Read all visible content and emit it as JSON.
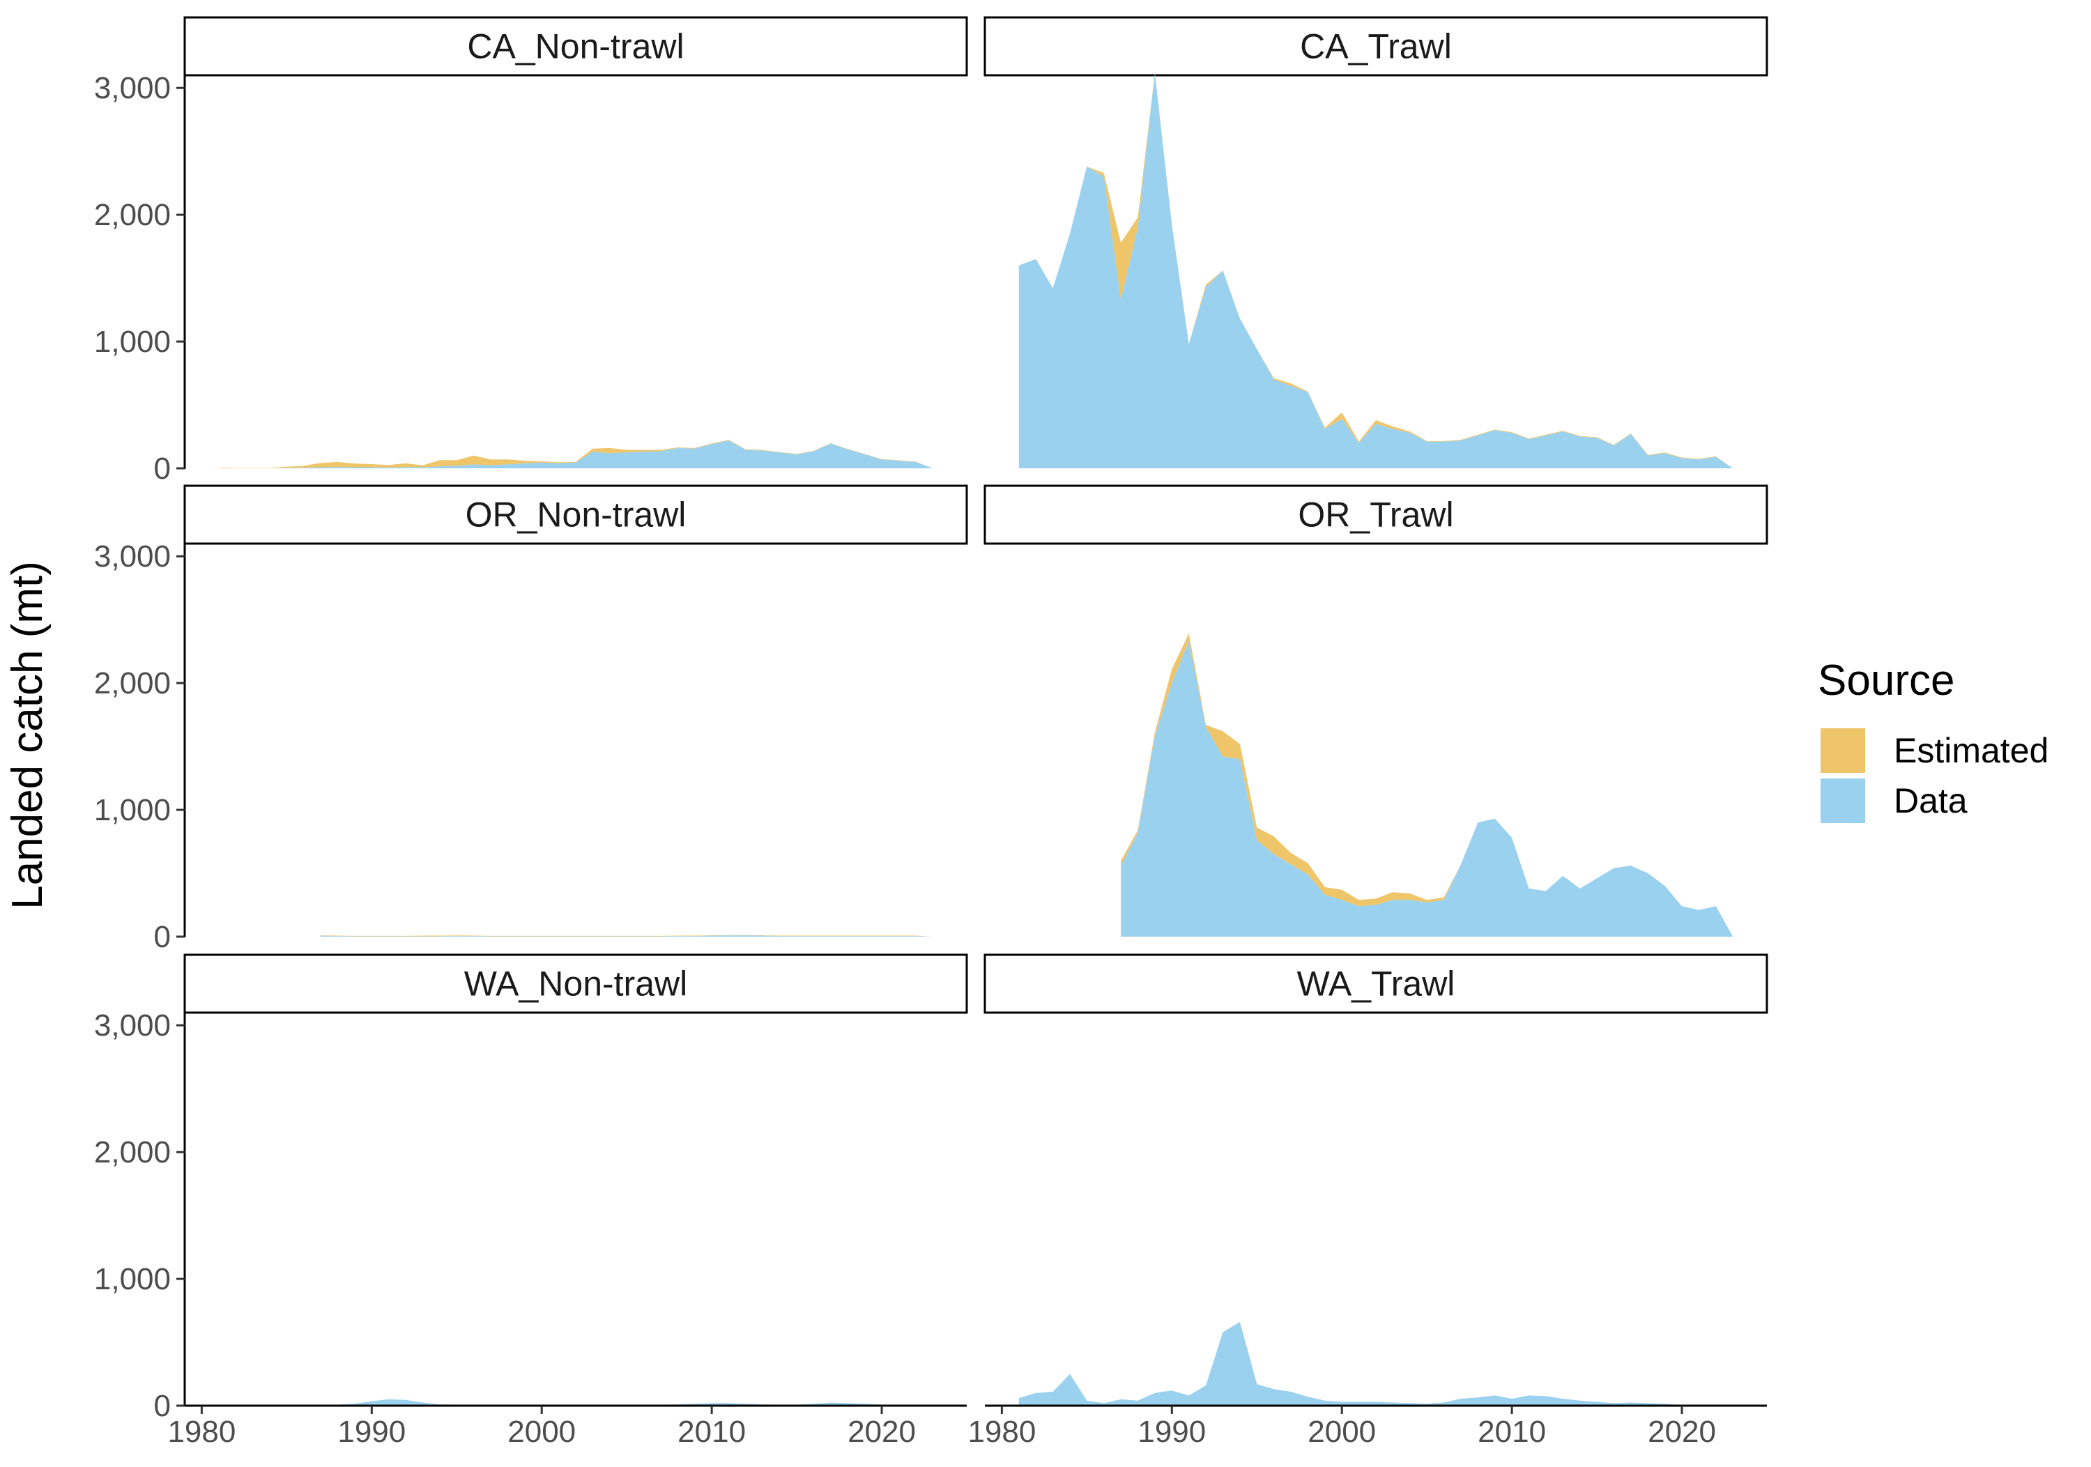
{
  "chart_data": {
    "type": "area",
    "ylabel": "Landed catch (mt)",
    "xlabel": "",
    "xlim": [
      1979,
      2025
    ],
    "ylim": [
      0,
      3100
    ],
    "x_ticks": [
      1980,
      1990,
      2000,
      2010,
      2020
    ],
    "x_tick_labels": [
      "1980",
      "1990",
      "2000",
      "2010",
      "2020"
    ],
    "y_ticks": [
      0,
      1000,
      2000,
      3000
    ],
    "y_tick_labels": [
      "0",
      "1,000",
      "2,000",
      "3,000"
    ],
    "grid": false,
    "stacked": true,
    "legend": {
      "title": "Source",
      "position": "right",
      "entries": [
        {
          "label": "Estimated",
          "color": "#efc56a"
        },
        {
          "label": "Data",
          "color": "#9ad1ef"
        }
      ]
    },
    "colors": {
      "Estimated": "#efc56a",
      "Data": "#9ad1ef"
    },
    "panels": [
      {
        "name": "CA_Non-trawl",
        "x": [
          1981,
          1982,
          1983,
          1984,
          1985,
          1986,
          1987,
          1988,
          1989,
          1990,
          1991,
          1992,
          1993,
          1994,
          1995,
          1996,
          1997,
          1998,
          1999,
          2000,
          2001,
          2002,
          2003,
          2004,
          2005,
          2006,
          2007,
          2008,
          2009,
          2010,
          2011,
          2012,
          2013,
          2014,
          2015,
          2016,
          2017,
          2018,
          2019,
          2020,
          2021,
          2022,
          2023
        ],
        "series": [
          {
            "name": "Data",
            "values": [
              0,
              0,
              0,
              0,
              3,
              5,
              8,
              10,
              8,
              8,
              6,
              10,
              8,
              15,
              20,
              30,
              25,
              30,
              40,
              45,
              40,
              45,
              130,
              120,
              125,
              130,
              135,
              160,
              155,
              190,
              220,
              145,
              140,
              125,
              110,
              135,
              195,
              150,
              110,
              70,
              60,
              50,
              0
            ]
          },
          {
            "name": "Estimated",
            "values": [
              5,
              3,
              3,
              3,
              10,
              15,
              35,
              40,
              30,
              25,
              20,
              30,
              15,
              50,
              45,
              70,
              45,
              40,
              20,
              10,
              8,
              5,
              25,
              40,
              20,
              15,
              10,
              5,
              5,
              5,
              5,
              5,
              5,
              3,
              3,
              3,
              3,
              3,
              3,
              3,
              3,
              3,
              0
            ]
          }
        ]
      },
      {
        "name": "CA_Trawl",
        "x": [
          1981,
          1982,
          1983,
          1984,
          1985,
          1986,
          1987,
          1988,
          1989,
          1990,
          1991,
          1992,
          1993,
          1994,
          1995,
          1996,
          1997,
          1998,
          1999,
          2000,
          2001,
          2002,
          2003,
          2004,
          2005,
          2006,
          2007,
          2008,
          2009,
          2010,
          2011,
          2012,
          2013,
          2014,
          2015,
          2016,
          2017,
          2018,
          2019,
          2020,
          2021,
          2022,
          2023
        ],
        "series": [
          {
            "name": "Data",
            "values": [
              1600,
              1650,
              1420,
              1850,
              2380,
              2300,
              1330,
              1900,
              3120,
              1920,
              980,
              1430,
              1560,
              1180,
              940,
              700,
              650,
              600,
              310,
              390,
              200,
              350,
              310,
              280,
              210,
              210,
              220,
              260,
              300,
              280,
              230,
              260,
              290,
              250,
              240,
              180,
              270,
              100,
              120,
              80,
              70,
              90,
              0
            ]
          },
          {
            "name": "Estimated",
            "values": [
              0,
              0,
              0,
              0,
              0,
              30,
              450,
              80,
              0,
              0,
              0,
              20,
              0,
              0,
              0,
              10,
              20,
              5,
              10,
              50,
              10,
              30,
              20,
              10,
              5,
              5,
              5,
              5,
              5,
              5,
              5,
              5,
              5,
              5,
              5,
              5,
              5,
              5,
              5,
              5,
              5,
              5,
              0
            ]
          }
        ]
      },
      {
        "name": "OR_Non-trawl",
        "x": [
          1987,
          1988,
          1989,
          1990,
          1991,
          1992,
          1993,
          1994,
          1995,
          1996,
          1997,
          1998,
          1999,
          2000,
          2001,
          2002,
          2003,
          2004,
          2005,
          2006,
          2007,
          2008,
          2009,
          2010,
          2011,
          2012,
          2013,
          2014,
          2015,
          2016,
          2017,
          2018,
          2019,
          2020,
          2021,
          2022,
          2023
        ],
        "series": [
          {
            "name": "Data",
            "values": [
              8,
              5,
              3,
              3,
              3,
              3,
              3,
              3,
              5,
              5,
              3,
              3,
              3,
              3,
              3,
              3,
              3,
              3,
              3,
              3,
              3,
              5,
              5,
              8,
              10,
              10,
              8,
              5,
              5,
              5,
              5,
              5,
              5,
              5,
              5,
              5,
              0
            ]
          },
          {
            "name": "Estimated",
            "values": [
              3,
              3,
              3,
              3,
              3,
              3,
              5,
              5,
              5,
              3,
              3,
              3,
              3,
              3,
              3,
              3,
              3,
              3,
              3,
              3,
              3,
              3,
              3,
              3,
              3,
              3,
              3,
              3,
              3,
              3,
              3,
              3,
              3,
              3,
              3,
              3,
              0
            ]
          }
        ]
      },
      {
        "name": "OR_Trawl",
        "x": [
          1987,
          1988,
          1989,
          1990,
          1991,
          1992,
          1993,
          1994,
          1995,
          1996,
          1997,
          1998,
          1999,
          2000,
          2001,
          2002,
          2003,
          2004,
          2005,
          2006,
          2007,
          2008,
          2009,
          2010,
          2011,
          2012,
          2013,
          2014,
          2015,
          2016,
          2017,
          2018,
          2019,
          2020,
          2021,
          2022,
          2023
        ],
        "series": [
          {
            "name": "Data",
            "values": [
              560,
              820,
              1580,
              2000,
              2330,
              1650,
              1420,
              1400,
              760,
              650,
              570,
              490,
              330,
              290,
              240,
              250,
              290,
              290,
              270,
              290,
              570,
              900,
              930,
              780,
              380,
              360,
              480,
              380,
              460,
              540,
              560,
              500,
              400,
              240,
              210,
              240,
              0
            ]
          },
          {
            "name": "Estimated",
            "values": [
              40,
              20,
              30,
              110,
              60,
              20,
              200,
              120,
              100,
              140,
              90,
              90,
              60,
              80,
              50,
              50,
              60,
              50,
              20,
              20,
              0,
              0,
              0,
              0,
              0,
              0,
              0,
              0,
              0,
              0,
              0,
              0,
              0,
              0,
              0,
              0,
              0
            ]
          }
        ]
      },
      {
        "name": "WA_Non-trawl",
        "x": [
          1981,
          1982,
          1983,
          1984,
          1985,
          1986,
          1987,
          1988,
          1989,
          1990,
          1991,
          1992,
          1993,
          1994,
          1995,
          1996,
          1997,
          1998,
          1999,
          2000,
          2001,
          2002,
          2003,
          2004,
          2005,
          2006,
          2007,
          2008,
          2009,
          2010,
          2011,
          2012,
          2013,
          2014,
          2015,
          2016,
          2017,
          2018,
          2019,
          2020,
          2021,
          2022,
          2023
        ],
        "series": [
          {
            "name": "Data",
            "values": [
              0,
              0,
              0,
              0,
              0,
              0,
              3,
              8,
              15,
              35,
              50,
              45,
              25,
              10,
              8,
              8,
              5,
              5,
              5,
              5,
              5,
              5,
              5,
              5,
              5,
              5,
              8,
              10,
              15,
              20,
              20,
              15,
              10,
              8,
              8,
              15,
              25,
              20,
              15,
              8,
              5,
              3,
              0
            ]
          },
          {
            "name": "Estimated",
            "values": [
              0,
              0,
              0,
              0,
              0,
              0,
              0,
              0,
              0,
              0,
              0,
              0,
              0,
              0,
              0,
              0,
              0,
              0,
              0,
              0,
              0,
              0,
              0,
              0,
              0,
              0,
              0,
              0,
              0,
              0,
              0,
              0,
              0,
              0,
              0,
              0,
              0,
              0,
              0,
              0,
              0,
              0,
              0
            ]
          }
        ]
      },
      {
        "name": "WA_Trawl",
        "x": [
          1981,
          1982,
          1983,
          1984,
          1985,
          1986,
          1987,
          1988,
          1989,
          1990,
          1991,
          1992,
          1993,
          1994,
          1995,
          1996,
          1997,
          1998,
          1999,
          2000,
          2001,
          2002,
          2003,
          2004,
          2005,
          2006,
          2007,
          2008,
          2009,
          2010,
          2011,
          2012,
          2013,
          2014,
          2015,
          2016,
          2017,
          2018,
          2019,
          2020,
          2021,
          2022,
          2023
        ],
        "series": [
          {
            "name": "Data",
            "values": [
              60,
              100,
              110,
              250,
              40,
              20,
              50,
              40,
              100,
              120,
              80,
              160,
              580,
              660,
              170,
              130,
              110,
              70,
              40,
              30,
              30,
              30,
              25,
              20,
              15,
              25,
              55,
              65,
              80,
              55,
              80,
              75,
              55,
              40,
              30,
              20,
              25,
              20,
              15,
              5,
              5,
              5,
              0
            ]
          },
          {
            "name": "Estimated",
            "values": [
              0,
              0,
              0,
              0,
              0,
              0,
              0,
              0,
              0,
              0,
              0,
              0,
              0,
              0,
              0,
              0,
              0,
              0,
              0,
              0,
              0,
              0,
              0,
              0,
              0,
              0,
              0,
              0,
              0,
              0,
              0,
              0,
              0,
              0,
              0,
              0,
              0,
              0,
              0,
              0,
              0,
              0,
              0
            ]
          }
        ]
      }
    ]
  }
}
